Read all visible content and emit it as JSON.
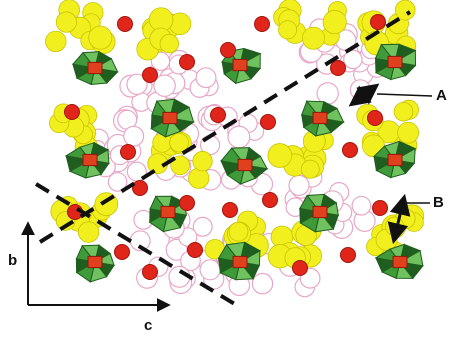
{
  "labels": {
    "a": "A",
    "b": "B",
    "axis_b": "b",
    "axis_c": "c"
  },
  "colors": {
    "yellow_sphere": "#f2ef1e",
    "yellow_edge": "#c9c400",
    "red_sphere": "#e0261b",
    "red_edge": "#a5120b",
    "green_polyhedron": "#3f9a3a",
    "green_light": "#6fc25e",
    "green_dark": "#1f5e1e",
    "center_red": "#e0401e",
    "pink_outline": "#e8a7c8",
    "ink": "#111111"
  },
  "icons": {
    "axis_arrow": "arrow-icon",
    "dimension_arrow": "double-arrow-icon"
  }
}
